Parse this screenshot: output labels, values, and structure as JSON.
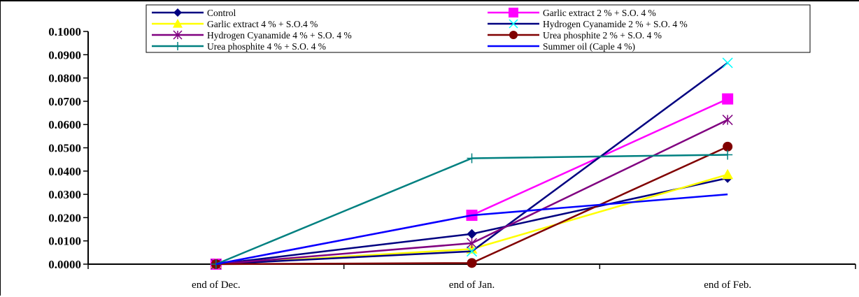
{
  "chart_data": {
    "type": "line",
    "title": "",
    "xlabel": "",
    "ylabel": "",
    "categories": [
      "end of Dec.",
      "end of Jan.",
      "end of Feb."
    ],
    "ylim": [
      0,
      0.1
    ],
    "yticks": [
      "0.0000",
      "0.0100",
      "0.0200",
      "0.0300",
      "0.0400",
      "0.0500",
      "0.0600",
      "0.0700",
      "0.0800",
      "0.0900",
      "0.1000"
    ],
    "grid": false,
    "legend_position": "top",
    "series": [
      {
        "name": "Control",
        "values": [
          0.0,
          0.013,
          0.037
        ],
        "color": "#000080",
        "marker": "diamond"
      },
      {
        "name": "Garlic extract 2 % + S.O. 4 %",
        "values": [
          0.0,
          0.021,
          0.071
        ],
        "color": "#FF00FF",
        "marker": "square"
      },
      {
        "name": "Garlic extract 4 % + S.O.4 %",
        "values": [
          0.0,
          0.0065,
          0.0385
        ],
        "color": "#FFFF00",
        "marker": "triangle"
      },
      {
        "name": "Hydrogen Cyanamide 2 % + S.O.  4 %",
        "values": [
          0.0,
          0.0055,
          0.0865
        ],
        "color": "#000080",
        "marker": "x",
        "marker_color": "#00FFFF"
      },
      {
        "name": "Hydrogen Cyanamide 4 % + S.O. 4 %",
        "values": [
          0.0,
          0.009,
          0.062
        ],
        "color": "#800080",
        "marker": "star"
      },
      {
        "name": "Urea phosphite 2 % + S.O.  4 %",
        "values": [
          0.0,
          0.0005,
          0.0505
        ],
        "color": "#800000",
        "marker": "circle"
      },
      {
        "name": "Urea phosphite 4 % + S.O.  4 %",
        "values": [
          0.0,
          0.0455,
          0.047
        ],
        "color": "#008080",
        "marker": "plus"
      },
      {
        "name": "Summer oil (Caple  4 %)",
        "values": [
          0.0,
          0.021,
          0.03
        ],
        "color": "#0000FF",
        "marker": "none"
      }
    ]
  }
}
